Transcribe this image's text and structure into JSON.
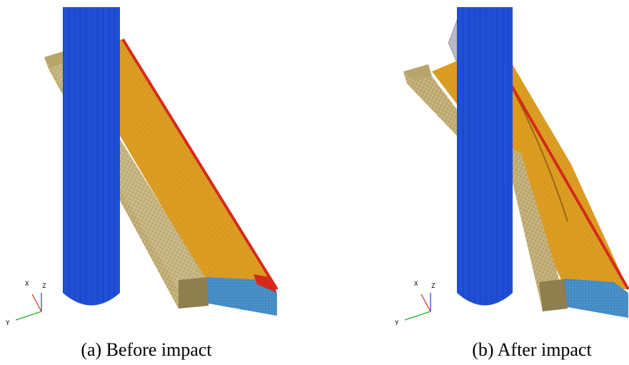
{
  "figure": {
    "panels": [
      {
        "caption": "(a) Before impact",
        "triad": {
          "x": "X",
          "z": "Z",
          "y": "Y"
        }
      },
      {
        "caption": "(b) After impact",
        "triad": {
          "x": "X",
          "z": "Z",
          "y": "Y"
        }
      }
    ]
  }
}
